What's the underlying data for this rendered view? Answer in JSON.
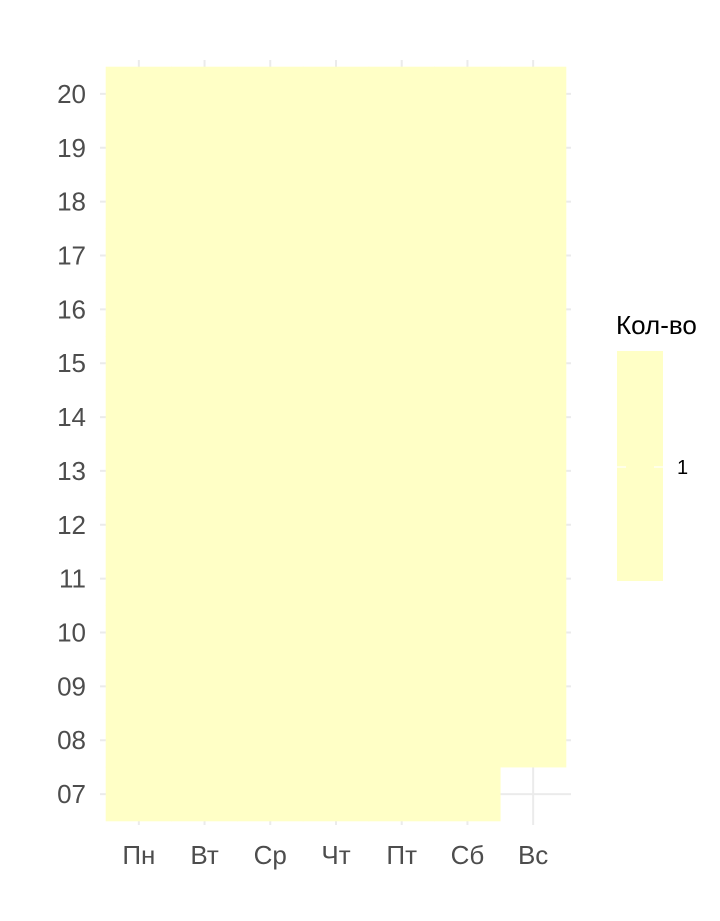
{
  "chart_data": {
    "type": "heatmap",
    "x_categories": [
      "Пн",
      "Вт",
      "Ср",
      "Чт",
      "Пт",
      "Сб",
      "Вс"
    ],
    "y_categories": [
      "07",
      "08",
      "09",
      "10",
      "11",
      "12",
      "13",
      "14",
      "15",
      "16",
      "17",
      "18",
      "19",
      "20"
    ],
    "cells": [
      {
        "x": "Пн",
        "hours": [
          "07",
          "08",
          "09",
          "10",
          "11",
          "12",
          "13",
          "14",
          "15",
          "16",
          "17",
          "18",
          "19",
          "20"
        ],
        "value": 1
      },
      {
        "x": "Вт",
        "hours": [
          "07",
          "08",
          "09",
          "10",
          "11",
          "12",
          "13",
          "14",
          "15",
          "16",
          "17",
          "18",
          "19",
          "20"
        ],
        "value": 1
      },
      {
        "x": "Ср",
        "hours": [
          "07",
          "08",
          "09",
          "10",
          "11",
          "12",
          "13",
          "14",
          "15",
          "16",
          "17",
          "18",
          "19",
          "20"
        ],
        "value": 1
      },
      {
        "x": "Чт",
        "hours": [
          "07",
          "08",
          "09",
          "10",
          "11",
          "12",
          "13",
          "14",
          "15",
          "16",
          "17",
          "18",
          "19",
          "20"
        ],
        "value": 1
      },
      {
        "x": "Пт",
        "hours": [
          "07",
          "08",
          "09",
          "10",
          "11",
          "12",
          "13",
          "14",
          "15",
          "16",
          "17",
          "18",
          "19",
          "20"
        ],
        "value": 1
      },
      {
        "x": "Сб",
        "hours": [
          "07",
          "08",
          "09",
          "10",
          "11",
          "12",
          "13",
          "14",
          "15",
          "16",
          "17",
          "18",
          "19",
          "20"
        ],
        "value": 1
      },
      {
        "x": "Вс",
        "hours": [
          "08",
          "09",
          "10",
          "11",
          "12",
          "13",
          "14",
          "15",
          "16",
          "17",
          "18",
          "19",
          "20"
        ],
        "value": 1
      }
    ],
    "fill_color": "#ffffc6",
    "grid_color": "#ebebeb",
    "legend": {
      "title": "Кол-во",
      "labels": [
        "1"
      ],
      "placement": "right"
    },
    "title": "",
    "xlabel": "",
    "ylabel": ""
  }
}
